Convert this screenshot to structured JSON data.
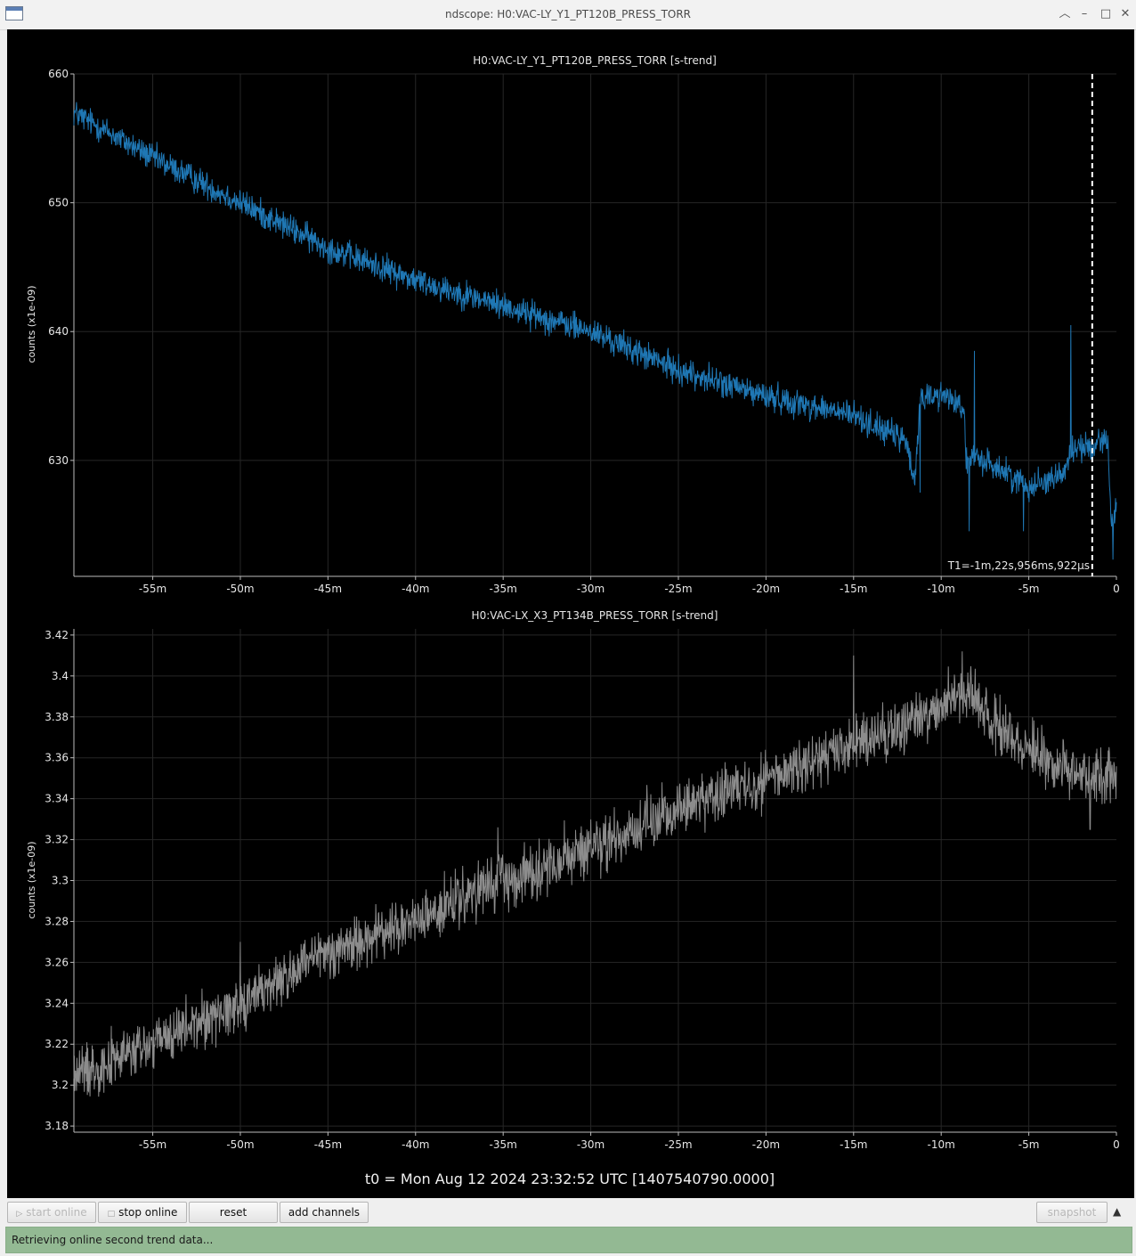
{
  "window": {
    "title": "ndscope: H0:VAC-LY_Y1_PT120B_PRESS_TORR",
    "controls": [
      "keep-above",
      "minimize",
      "maximize",
      "close"
    ]
  },
  "plots": [
    {
      "title": "H0:VAC-LY_Y1_PT120B_PRESS_TORR [s-trend]",
      "ylabel": "counts (x1e-09)",
      "series_color": "#1f77b4",
      "yticks": [
        "660",
        "650",
        "640",
        "630"
      ],
      "xticks": [
        "-55m",
        "-50m",
        "-45m",
        "-40m",
        "-35m",
        "-30m",
        "-25m",
        "-20m",
        "-15m",
        "-10m",
        "-5m",
        "0"
      ],
      "cursor_label": "T1=-1m,22s,956ms,922µs"
    },
    {
      "title": "H0:VAC-LX_X3_PT134B_PRESS_TORR [s-trend]",
      "ylabel": "counts (x1e-09)",
      "series_color": "#8c8c8c",
      "yticks": [
        "3.42",
        "3.4",
        "3.38",
        "3.36",
        "3.34",
        "3.32",
        "3.3",
        "3.28",
        "3.26",
        "3.24",
        "3.22",
        "3.2",
        "3.18"
      ],
      "xticks": [
        "-55m",
        "-50m",
        "-45m",
        "-40m",
        "-35m",
        "-30m",
        "-25m",
        "-20m",
        "-15m",
        "-10m",
        "-5m",
        "0"
      ]
    }
  ],
  "t0_label": "t0 = Mon Aug 12 2024 23:32:52 UTC [1407540790.0000]",
  "chart_data": [
    {
      "type": "line",
      "title": "H0:VAC-LY_Y1_PT120B_PRESS_TORR [s-trend]",
      "xlabel": "",
      "ylabel": "counts (x1e-09)",
      "xlim": [
        -59.5,
        0
      ],
      "ylim": [
        621,
        660
      ],
      "grid": true,
      "cursor_x": -1.38,
      "x_knots": [
        -59.5,
        -55,
        -50,
        -45,
        -40,
        -35,
        -30,
        -25,
        -20,
        -15,
        -12,
        -11.5,
        -11.2,
        -9.5,
        -8.7,
        -8.6,
        -8.0,
        -7.5,
        -5,
        -3,
        -2.5,
        -1.5,
        -0.5,
        -0.3,
        0
      ],
      "y_knots": [
        657,
        653.5,
        650,
        646.5,
        644,
        642,
        640,
        637,
        635,
        633.5,
        631.5,
        628,
        635,
        635,
        634,
        630,
        630,
        630,
        628,
        629,
        631,
        631,
        632,
        625,
        626
      ],
      "noise": 0.9,
      "spikes": [
        [
          -11.2,
          639.5
        ],
        [
          -11.2,
          627.5
        ],
        [
          -8.4,
          624.5
        ],
        [
          -8.1,
          638.5
        ],
        [
          -5.3,
          624.5
        ],
        [
          -2.6,
          640.5
        ],
        [
          -0.2,
          622.3
        ]
      ]
    },
    {
      "type": "line",
      "title": "H0:VAC-LX_X3_PT134B_PRESS_TORR [s-trend]",
      "xlabel": "",
      "ylabel": "counts (x1e-09)",
      "xlim": [
        -59.5,
        0
      ],
      "ylim": [
        3.177,
        3.423
      ],
      "grid": true,
      "x_knots": [
        -59.5,
        -55,
        -50,
        -45,
        -40,
        -35,
        -30,
        -25,
        -20,
        -15,
        -10,
        -8.5,
        -6,
        -3,
        0
      ],
      "y_knots": [
        3.205,
        3.22,
        3.24,
        3.265,
        3.28,
        3.3,
        3.315,
        3.335,
        3.35,
        3.365,
        3.385,
        3.392,
        3.37,
        3.355,
        3.35
      ],
      "noise": 0.011,
      "spikes": [
        [
          -35.3,
          3.326
        ],
        [
          -50,
          3.27
        ],
        [
          -15,
          3.41
        ],
        [
          -8.8,
          3.412
        ],
        [
          -1.5,
          3.325
        ]
      ]
    }
  ],
  "toolbar": {
    "start_online": "start online",
    "stop_online": "stop online",
    "reset": "reset",
    "add_channels": "add channels",
    "snapshot": "snapshot",
    "collapse_icon": "triangle-up"
  },
  "status": "Retrieving online second trend data..."
}
